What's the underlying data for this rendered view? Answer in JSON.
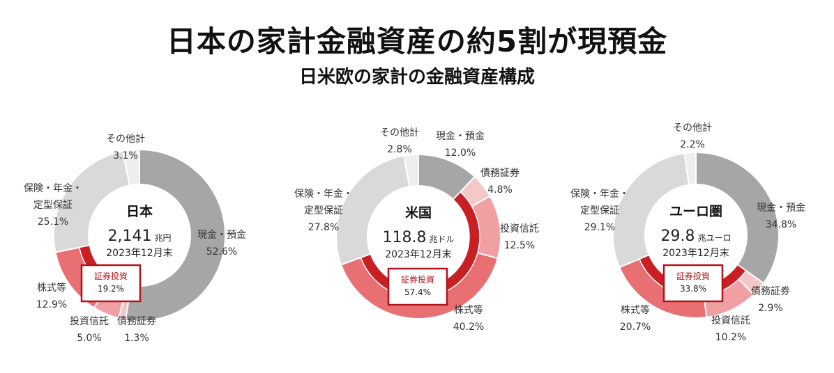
{
  "title": "日本の家計金融資産の約5割が現預金",
  "subtitle": "日米欧の家計の金融資産構成",
  "colors": {
    "cash": "#a6a6a6",
    "bonds": "#f4c7c8",
    "trusts": "#f0a0a3",
    "stocks": "#e86f72",
    "insurance": "#d9d9d9",
    "other": "#eeeeee",
    "securities": "#c81f24",
    "box_border": "#b3141b",
    "box_text": "#b3141b"
  },
  "chart_data": [
    {
      "type": "pie",
      "region": "日本",
      "total_value": "2,141",
      "total_unit": "兆円",
      "as_of": "2023年12月末",
      "securities_label": "証券投資",
      "securities_pct": 19.2,
      "securities_pct_text": "19.2%",
      "slices": [
        {
          "label": "現金・預金",
          "value": 52.6,
          "value_text": "52.6%",
          "color_key": "cash"
        },
        {
          "label": "債務証券",
          "value": 1.3,
          "value_text": "1.3%",
          "color_key": "bonds"
        },
        {
          "label": "投資信託",
          "value": 5.0,
          "value_text": "5.0%",
          "color_key": "trusts"
        },
        {
          "label": "株式等",
          "value": 12.9,
          "value_text": "12.9%",
          "color_key": "stocks"
        },
        {
          "label": "保険・年金・定型保証",
          "label_lines": [
            "保険・年金・",
            "定型保証"
          ],
          "value": 25.1,
          "value_text": "25.1%",
          "color_key": "insurance"
        },
        {
          "label": "その他計",
          "value": 3.1,
          "value_text": "3.1%",
          "color_key": "other"
        }
      ]
    },
    {
      "type": "pie",
      "region": "米国",
      "total_value": "118.8",
      "total_unit": "兆ドル",
      "as_of": "2023年12月末",
      "securities_label": "証券投資",
      "securities_pct": 57.4,
      "securities_pct_text": "57.4%",
      "slices": [
        {
          "label": "現金・預金",
          "value": 12.0,
          "value_text": "12.0%",
          "color_key": "cash"
        },
        {
          "label": "債務証券",
          "value": 4.8,
          "value_text": "4.8%",
          "color_key": "bonds"
        },
        {
          "label": "投資信託",
          "value": 12.5,
          "value_text": "12.5%",
          "color_key": "trusts"
        },
        {
          "label": "株式等",
          "value": 40.2,
          "value_text": "40.2%",
          "color_key": "stocks"
        },
        {
          "label": "保険・年金・定型保証",
          "label_lines": [
            "保険・年金・",
            "定型保証"
          ],
          "value": 27.8,
          "value_text": "27.8%",
          "color_key": "insurance"
        },
        {
          "label": "その他計",
          "value": 2.8,
          "value_text": "2.8%",
          "color_key": "other"
        }
      ]
    },
    {
      "type": "pie",
      "region": "ユーロ圏",
      "total_value": "29.8",
      "total_unit": "兆ユーロ",
      "as_of": "2023年12月末",
      "securities_label": "証券投資",
      "securities_pct": 33.8,
      "securities_pct_text": "33.8%",
      "slices": [
        {
          "label": "現金・預金",
          "value": 34.8,
          "value_text": "34.8%",
          "color_key": "cash"
        },
        {
          "label": "債務証券",
          "value": 2.9,
          "value_text": "2.9%",
          "color_key": "bonds"
        },
        {
          "label": "投資信託",
          "value": 10.2,
          "value_text": "10.2%",
          "color_key": "trusts"
        },
        {
          "label": "株式等",
          "value": 20.7,
          "value_text": "20.7%",
          "color_key": "stocks"
        },
        {
          "label": "保険・年金・定型保証",
          "label_lines": [
            "保険・年金・",
            "定型保証"
          ],
          "value": 29.1,
          "value_text": "29.1%",
          "color_key": "insurance"
        },
        {
          "label": "その他計",
          "value": 2.2,
          "value_text": "2.2%",
          "color_key": "other"
        }
      ]
    }
  ]
}
